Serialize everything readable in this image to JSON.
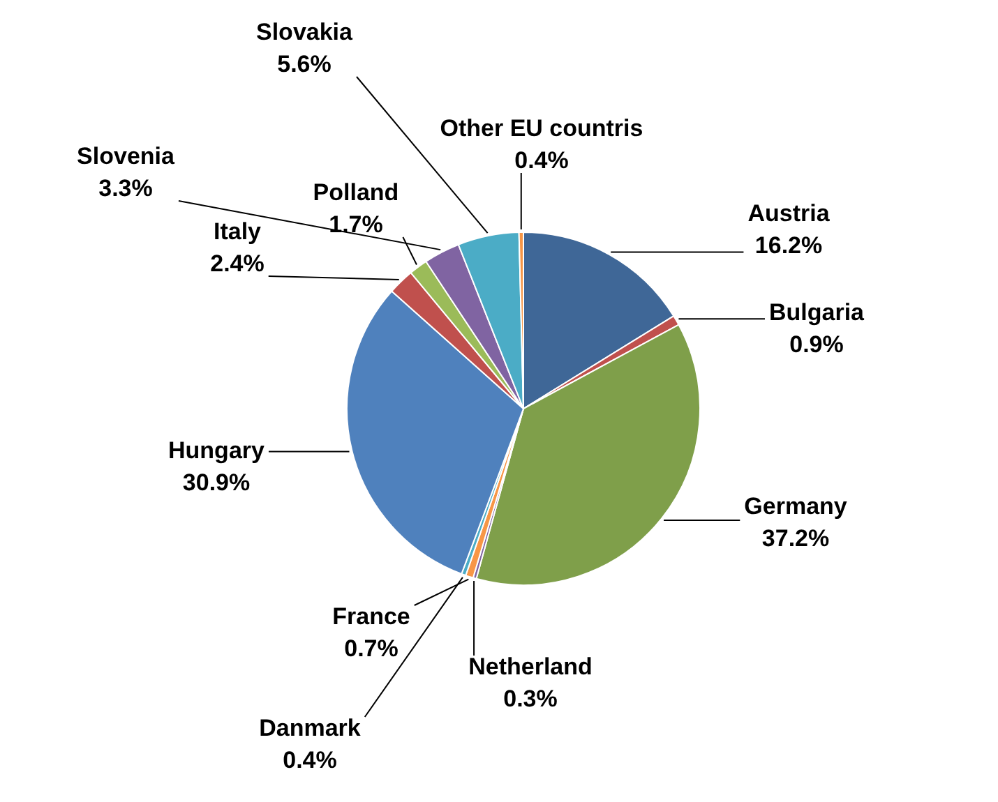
{
  "chart_data": {
    "type": "pie",
    "categories": [
      "Austria",
      "Bulgaria",
      "Germany",
      "Netherland",
      "France",
      "Danmark",
      "Hungary",
      "Italy",
      "Polland",
      "Slovenia",
      "Slovakia",
      "Other EU countris"
    ],
    "values": [
      16.2,
      0.9,
      37.2,
      0.3,
      0.7,
      0.4,
      30.9,
      2.4,
      1.7,
      3.3,
      5.6,
      0.4
    ],
    "colors": [
      "#3f6797",
      "#c0504d",
      "#7f9f4a",
      "#8064a2",
      "#f79646",
      "#4bacc6",
      "#4f81bd",
      "#c0504d",
      "#9bbb59",
      "#8064a2",
      "#4bacc6",
      "#f79646"
    ],
    "value_labels": [
      "16.2%",
      "0.9%",
      "37.2%",
      "0.3%",
      "0.7%",
      "0.4%",
      "30.9%",
      "2.4%",
      "1.7%",
      "3.3%",
      "5.6%",
      "0.4%"
    ],
    "legend": false
  }
}
